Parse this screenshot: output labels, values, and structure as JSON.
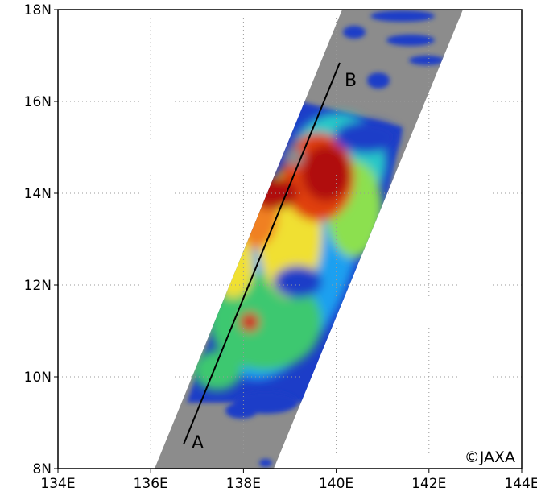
{
  "axes": {
    "x": {
      "lim": [
        134,
        144
      ],
      "ticks": [
        {
          "value": 134,
          "label": "134E"
        },
        {
          "value": 136,
          "label": "136E"
        },
        {
          "value": 138,
          "label": "138E"
        },
        {
          "value": 140,
          "label": "140E"
        },
        {
          "value": 142,
          "label": "142E"
        },
        {
          "value": 144,
          "label": "144E"
        }
      ]
    },
    "y": {
      "lim": [
        8,
        18
      ],
      "ticks": [
        {
          "value": 8,
          "label": "8N"
        },
        {
          "value": 10,
          "label": "10N"
        },
        {
          "value": 12,
          "label": "12N"
        },
        {
          "value": 14,
          "label": "14N"
        },
        {
          "value": 16,
          "label": "16N"
        },
        {
          "value": 18,
          "label": "18N"
        }
      ]
    }
  },
  "cross_section": {
    "start_label": "A",
    "end_label": "B"
  },
  "credit": "©JAXA"
}
